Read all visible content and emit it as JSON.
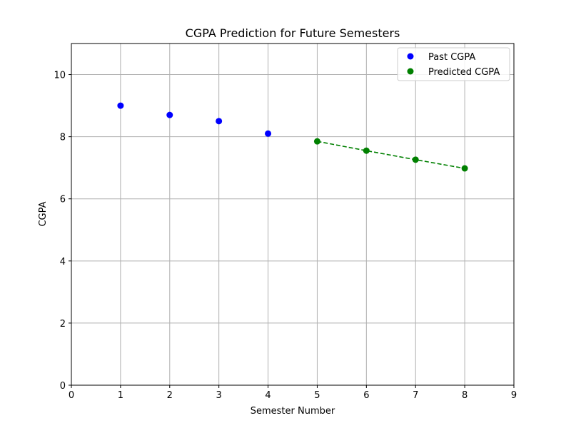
{
  "chart_data": {
    "type": "scatter",
    "title": "CGPA Prediction for Future Semesters",
    "xlabel": "Semester Number",
    "ylabel": "CGPA",
    "xlim": [
      0,
      9
    ],
    "ylim": [
      0,
      11
    ],
    "xticks": [
      0,
      1,
      2,
      3,
      4,
      5,
      6,
      7,
      8,
      9
    ],
    "yticks": [
      0,
      2,
      4,
      6,
      8,
      10
    ],
    "grid": true,
    "legend_position": "top-right",
    "series": [
      {
        "name": "Past CGPA",
        "color": "#0000ff",
        "marker": "circle",
        "x": [
          1,
          2,
          3,
          4
        ],
        "y": [
          9.0,
          8.7,
          8.5,
          8.1
        ]
      },
      {
        "name": "Predicted CGPA",
        "color": "#008000",
        "marker": "circle",
        "line": "dashed",
        "x": [
          5,
          6,
          7,
          8
        ],
        "y": [
          7.85,
          7.55,
          7.26,
          6.98
        ]
      }
    ]
  }
}
